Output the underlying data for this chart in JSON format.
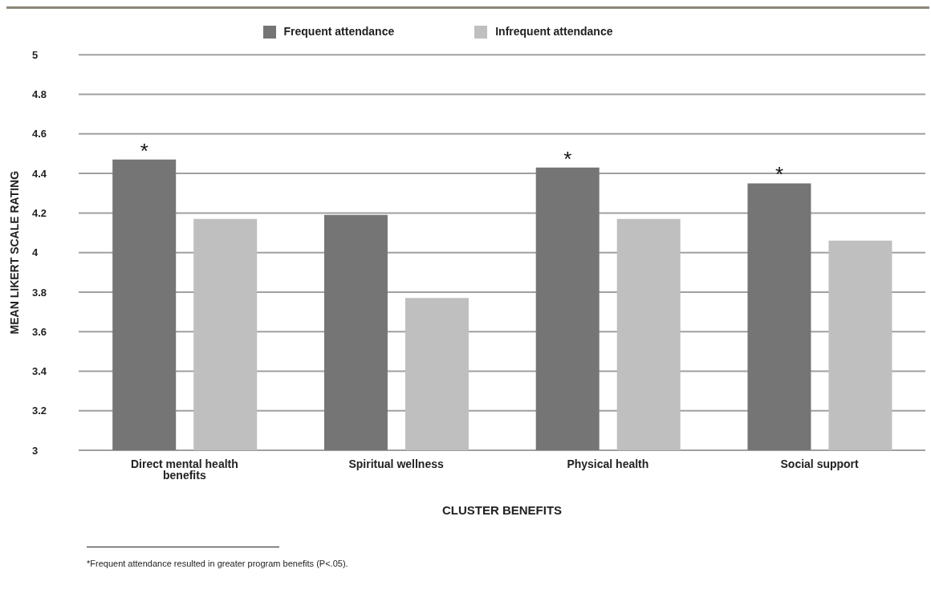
{
  "chart_data": {
    "type": "bar",
    "xlabel": "CLUSTER BENEFITS",
    "ylabel": "MEAN LIKERT SCALE RATING",
    "categories": [
      "Direct mental health benefits",
      "Spiritual wellness",
      "Physical health",
      "Social support"
    ],
    "series": [
      {
        "name": "Frequent attendance",
        "color": "#757575",
        "values": [
          4.47,
          4.19,
          4.43,
          4.35
        ],
        "value_labels": [
          "*",
          null,
          "*",
          "*"
        ]
      },
      {
        "name": "Infrequent attendance",
        "color": "#bfbfbf",
        "values": [
          4.17,
          3.77,
          4.17,
          4.06
        ]
      }
    ],
    "ylim": [
      3,
      5
    ],
    "yticks": [
      3,
      3.2,
      3.4,
      3.6,
      3.8,
      4,
      4.2,
      4.4,
      4.6,
      4.8,
      5
    ],
    "grid": "y",
    "legend": "top",
    "annotations": [
      "*Frequent attendance resulted in greater program benefits (P<.05)."
    ]
  }
}
